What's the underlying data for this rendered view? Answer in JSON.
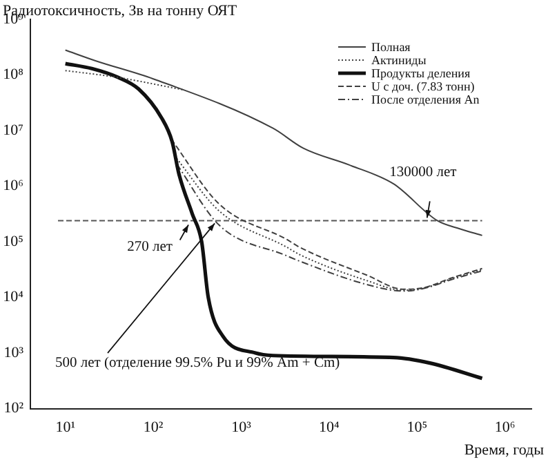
{
  "chart_data": {
    "type": "line",
    "xlabel": "Время, годы",
    "ylabel": "Радиотоксичность, Зв на тонну ОЯТ",
    "log": "xy",
    "xlim": [
      4,
      2000000
    ],
    "ylim": [
      100,
      1000000000
    ],
    "xticks": [
      {
        "value": 10,
        "label": "10¹"
      },
      {
        "value": 100,
        "label": "10²"
      },
      {
        "value": 1000,
        "label": "10³"
      },
      {
        "value": 10000,
        "label": "10⁴"
      },
      {
        "value": 100000,
        "label": "10⁵"
      },
      {
        "value": 1000000,
        "label": "10⁶"
      }
    ],
    "yticks": [
      {
        "value": 100,
        "label": "10²"
      },
      {
        "value": 1000,
        "label": "10³"
      },
      {
        "value": 10000,
        "label": "10⁴"
      },
      {
        "value": 100000,
        "label": "10⁵"
      },
      {
        "value": 1000000,
        "label": "10⁶"
      },
      {
        "value": 10000000,
        "label": "10⁷"
      },
      {
        "value": 100000000,
        "label": "10⁸"
      },
      {
        "value": 1000000000,
        "label": "10⁹"
      }
    ],
    "grid": false,
    "legend": "top right",
    "marker": "none",
    "series": [
      {
        "name": "Полная",
        "color": "#404040",
        "line_style": "solid",
        "x": [
          10,
          22,
          100,
          2300,
          5100,
          17000,
          54000,
          170000,
          310000,
          550000
        ],
        "values": [
          280000000,
          180000000,
          85000000,
          11000000,
          4800000,
          2400000,
          1100000,
          240000,
          170000,
          130000
        ]
      },
      {
        "name": "Актиниды",
        "color": "#404040",
        "line_style": "dotted",
        "x": [
          10,
          40,
          220
        ],
        "values": [
          120000000,
          90000000,
          54000000
        ]
      },
      {
        "name": "Продукты деления",
        "color": "#111111",
        "line_style": "solid",
        "x": [
          10,
          20,
          40,
          68,
          124,
          164,
          195,
          277,
          355,
          422,
          620,
          1450,
          2300,
          54000,
          140000,
          550000
        ],
        "values": [
          160000000,
          130000000,
          90000000,
          56000000,
          17000000,
          6300000,
          1700000,
          320000,
          100000,
          10000,
          2000,
          1000,
          900,
          830,
          660,
          350
        ]
      },
      {
        "name": "U с доч. (7.83 тонн)",
        "color": "#404040",
        "line_style": "dashed",
        "x": [
          160,
          560,
          3300,
          4600,
          27000,
          70000,
          120000,
          250000,
          550000
        ],
        "values": [
          7000000,
          480000,
          110000,
          80000,
          25000,
          14000,
          15000,
          22500,
          33000
        ]
      },
      {
        "color": "#404040",
        "line_style": "dotted",
        "x": [
          175,
          560,
          3300,
          4600,
          27000,
          70000,
          120000,
          250000,
          550000
        ],
        "values": [
          3500000,
          360000,
          80000,
          59000,
          20000,
          13500,
          14800,
          21800,
          31500
        ]
      },
      {
        "name": "После отделения An",
        "color": "#404040",
        "line_style": "dashdot",
        "x": [
          185,
          560,
          3300,
          4600,
          27000,
          70000,
          120000,
          250000,
          550000
        ],
        "values": [
          2500000,
          200000,
          56000,
          45000,
          17000,
          13000,
          14500,
          21000,
          30000
        ]
      }
    ],
    "ref_lines": [
      {
        "axis": "y",
        "value": 240000,
        "line_style": "dashed",
        "color": "#555555"
      }
    ],
    "annotations": [
      {
        "text": "130000 лет",
        "x": 130000,
        "y": 240000
      },
      {
        "text": "270 лет",
        "x": 270,
        "y": 240000
      },
      {
        "text": "500 лет (отделение 99.5% Pu и 99% Am + Cm)",
        "x": 500,
        "y": 240000
      }
    ]
  }
}
